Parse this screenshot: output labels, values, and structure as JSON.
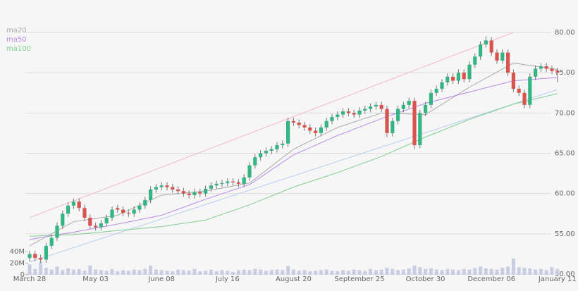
{
  "chart_data": {
    "type": "candlestick",
    "categories": [
      "March 28",
      null,
      null,
      null,
      null,
      null,
      null,
      null,
      null,
      null,
      null,
      null,
      "May 03",
      null,
      null,
      null,
      null,
      null,
      null,
      null,
      null,
      null,
      null,
      null,
      "June 08",
      null,
      null,
      null,
      null,
      null,
      null,
      null,
      null,
      null,
      null,
      null,
      "July 16",
      null,
      null,
      null,
      null,
      null,
      null,
      null,
      null,
      null,
      null,
      null,
      "August 20",
      null,
      null,
      null,
      null,
      null,
      null,
      null,
      null,
      null,
      null,
      null,
      "September 25",
      null,
      null,
      null,
      null,
      null,
      null,
      null,
      null,
      null,
      null,
      null,
      "October 30",
      null,
      null,
      null,
      null,
      null,
      null,
      null,
      null,
      null,
      null,
      null,
      "December 06",
      null,
      null,
      null,
      null,
      null,
      null,
      null,
      null,
      null,
      null,
      null,
      "January 11"
    ],
    "open": [
      52.0,
      52.5,
      52.0,
      51.8,
      53.5,
      54.5,
      56.0,
      57.5,
      58.5,
      59.0,
      58.2,
      57.0,
      56.0,
      55.8,
      56.3,
      57.0,
      58.2,
      58.0,
      57.6,
      57.5,
      58.0,
      58.5,
      59.2,
      60.5,
      60.8,
      61.0,
      60.8,
      60.5,
      60.3,
      60.0,
      59.8,
      60.2,
      60.0,
      60.6,
      61.0,
      61.2,
      61.3,
      61.5,
      61.4,
      61.2,
      62.0,
      63.5,
      64.5,
      65.0,
      65.3,
      65.5,
      66.0,
      66.2,
      69.0,
      68.8,
      68.5,
      68.2,
      67.8,
      67.5,
      68.2,
      69.0,
      69.5,
      69.8,
      70.2,
      70.0,
      69.8,
      70.3,
      70.5,
      70.8,
      71.0,
      70.5,
      67.5,
      69.0,
      70.5,
      71.0,
      71.5,
      66.0,
      70.0,
      71.0,
      72.5,
      73.0,
      73.8,
      74.5,
      74.0,
      75.0,
      74.2,
      76.0,
      77.0,
      78.5,
      79.0,
      77.5,
      76.5,
      77.5,
      75.0,
      73.0,
      72.5,
      71.0,
      74.5,
      75.5,
      75.8,
      75.5,
      75.2
    ],
    "high": [
      52.9,
      52.9,
      52.4,
      53.9,
      54.9,
      56.4,
      57.9,
      58.9,
      59.4,
      59.4,
      58.6,
      57.4,
      56.4,
      56.7,
      57.4,
      58.4,
      58.6,
      58.4,
      58.0,
      58.4,
      58.9,
      59.6,
      60.9,
      61.2,
      61.4,
      61.4,
      61.2,
      60.9,
      60.7,
      60.4,
      60.6,
      60.6,
      61.0,
      61.4,
      61.6,
      61.7,
      61.9,
      61.9,
      61.8,
      62.4,
      63.9,
      64.9,
      65.4,
      65.7,
      65.9,
      66.4,
      66.6,
      69.4,
      69.4,
      69.2,
      68.9,
      68.6,
      68.2,
      68.6,
      69.4,
      69.9,
      70.2,
      70.6,
      70.6,
      70.4,
      70.7,
      70.9,
      71.2,
      71.4,
      71.4,
      70.9,
      69.4,
      70.9,
      71.4,
      71.9,
      71.9,
      70.4,
      71.4,
      72.9,
      73.4,
      74.2,
      74.9,
      74.9,
      75.4,
      75.4,
      76.4,
      77.4,
      78.9,
      79.5,
      79.4,
      77.9,
      77.9,
      77.9,
      75.4,
      73.4,
      72.9,
      74.9,
      75.9,
      76.2,
      76.2,
      75.9,
      75.6
    ],
    "low": [
      51.6,
      51.6,
      51.4,
      51.4,
      53.1,
      54.1,
      55.6,
      57.1,
      58.1,
      57.8,
      56.6,
      55.6,
      55.4,
      55.4,
      55.9,
      56.6,
      57.6,
      57.2,
      57.1,
      57.1,
      57.6,
      58.1,
      58.8,
      60.1,
      60.4,
      60.4,
      60.1,
      59.9,
      59.6,
      59.4,
      59.4,
      59.6,
      59.6,
      60.2,
      60.6,
      60.8,
      60.9,
      61.0,
      60.8,
      60.8,
      61.6,
      63.1,
      64.1,
      64.6,
      64.9,
      65.1,
      65.6,
      65.8,
      68.4,
      68.1,
      67.8,
      67.4,
      67.1,
      67.1,
      67.8,
      68.6,
      69.1,
      69.4,
      69.6,
      69.4,
      69.4,
      69.9,
      70.1,
      70.4,
      70.1,
      67.0,
      67.1,
      68.6,
      70.1,
      70.6,
      65.5,
      65.6,
      69.6,
      70.6,
      72.1,
      72.6,
      73.4,
      73.6,
      73.6,
      73.8,
      73.8,
      75.6,
      76.6,
      78.1,
      77.1,
      76.1,
      76.1,
      74.6,
      72.6,
      72.1,
      70.6,
      70.6,
      74.1,
      75.1,
      75.1,
      74.8,
      73.8
    ],
    "close": [
      52.5,
      52.0,
      51.8,
      53.5,
      54.5,
      56.0,
      57.5,
      58.5,
      59.0,
      58.2,
      57.0,
      56.0,
      55.8,
      56.3,
      57.0,
      58.0,
      58.0,
      57.6,
      57.5,
      58.0,
      58.5,
      59.2,
      60.5,
      60.8,
      61.0,
      60.8,
      60.5,
      60.3,
      60.0,
      59.8,
      60.2,
      60.0,
      60.6,
      61.0,
      61.2,
      61.3,
      61.5,
      61.4,
      61.2,
      62.0,
      63.5,
      64.5,
      65.0,
      65.3,
      65.5,
      66.0,
      66.2,
      69.0,
      68.8,
      68.5,
      68.2,
      67.8,
      67.5,
      68.2,
      69.0,
      69.5,
      69.8,
      70.2,
      70.0,
      69.8,
      70.3,
      70.5,
      70.8,
      71.0,
      70.5,
      67.5,
      69.0,
      70.5,
      71.0,
      71.5,
      66.0,
      70.0,
      71.0,
      72.5,
      73.0,
      73.8,
      74.5,
      74.0,
      75.0,
      74.2,
      76.0,
      77.0,
      78.5,
      79.0,
      77.5,
      76.5,
      77.5,
      75.0,
      73.0,
      72.5,
      71.0,
      74.5,
      75.5,
      75.8,
      75.5,
      75.2,
      75.0
    ],
    "up_color": "#35b583",
    "down_color": "#d9534f",
    "ylim": [
      50,
      80
    ],
    "yticks": [
      {
        "value": 50,
        "label": "50.00"
      },
      {
        "value": 55,
        "label": "55.00"
      },
      {
        "value": 60,
        "label": "60.00"
      },
      {
        "value": 65,
        "label": "65.00"
      },
      {
        "value": 70,
        "label": "70.00"
      },
      {
        "value": 75,
        "label": "75.00"
      },
      {
        "value": 80,
        "label": "80.00"
      }
    ],
    "grid": true,
    "moving_averages": [
      {
        "name": "ma20",
        "color": "#a9a9a9",
        "x": [
          0,
          8,
          16,
          24,
          32,
          40,
          48,
          56,
          64,
          72,
          80,
          88,
          96
        ],
        "values": [
          53.5,
          56.5,
          57.3,
          59.8,
          60.3,
          61.3,
          65.5,
          68.2,
          70.0,
          69.8,
          73.2,
          76.2,
          75.4
        ]
      },
      {
        "name": "ma50",
        "color": "#b48be6",
        "x": [
          0,
          8,
          16,
          24,
          32,
          40,
          48,
          56,
          64,
          72,
          80,
          88,
          96
        ],
        "values": [
          54.3,
          55.2,
          56.2,
          57.3,
          59.3,
          61.1,
          64.8,
          67.2,
          69.3,
          71.2,
          72.6,
          74.0,
          74.4
        ]
      },
      {
        "name": "ma100",
        "color": "#7fcf8e",
        "x": [
          0,
          8,
          16,
          24,
          32,
          40,
          48,
          56,
          64,
          72,
          80,
          88,
          96
        ],
        "values": [
          54.7,
          54.9,
          55.4,
          55.9,
          56.7,
          58.6,
          60.8,
          62.6,
          64.6,
          67.0,
          69.2,
          71.1,
          72.4
        ]
      }
    ],
    "trendlines": [
      {
        "color": "#f4b8c4",
        "x": [
          0,
          88
        ],
        "values": [
          57.0,
          80.0
        ]
      },
      {
        "color": "#b9cdf2",
        "x": [
          0,
          96
        ],
        "values": [
          51.5,
          72.9
        ]
      }
    ],
    "volume": {
      "color": "#c8cde3",
      "ylim": [
        0,
        40
      ],
      "yticks": [
        0,
        {
          "value": 20,
          "label": "20M"
        },
        {
          "value": 40,
          "label": "40M"
        }
      ],
      "values": [
        18,
        10,
        22,
        12,
        9,
        14,
        8,
        11,
        9,
        10,
        7,
        16,
        9,
        8,
        7,
        10,
        6,
        8,
        7,
        9,
        8,
        10,
        16,
        9,
        8,
        7,
        6,
        9,
        8,
        7,
        10,
        6,
        7,
        9,
        6,
        8,
        7,
        5,
        8,
        9,
        8,
        10,
        9,
        7,
        8,
        9,
        8,
        15,
        9,
        7,
        8,
        6,
        7,
        8,
        9,
        7,
        6,
        8,
        7,
        9,
        8,
        7,
        10,
        8,
        9,
        12,
        10,
        8,
        9,
        11,
        16,
        13,
        10,
        11,
        9,
        8,
        10,
        9,
        8,
        10,
        9,
        12,
        14,
        11,
        10,
        9,
        12,
        14,
        28,
        13,
        12,
        11,
        9,
        10,
        8,
        13,
        10
      ]
    }
  }
}
